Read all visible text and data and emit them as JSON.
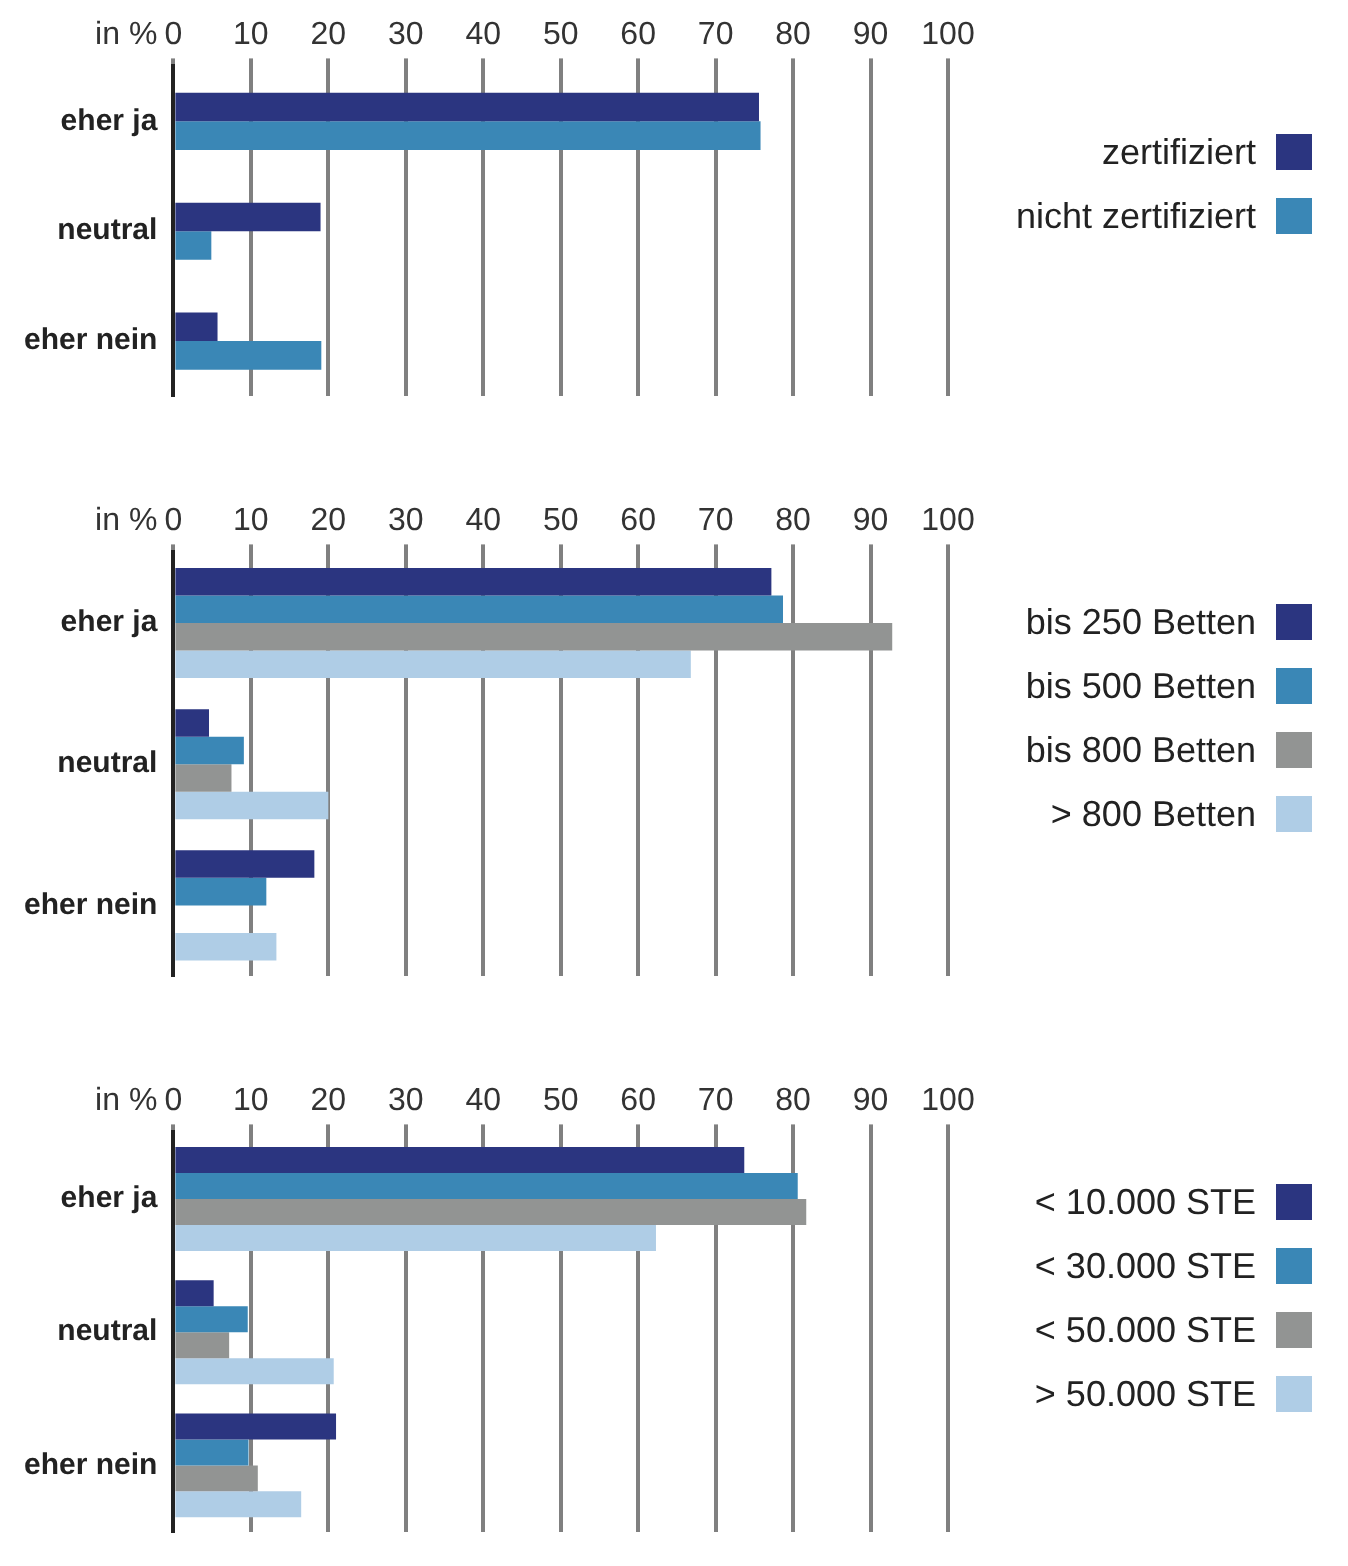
{
  "chart_data": [
    {
      "type": "bar",
      "orientation": "horizontal",
      "xlabel": "in %",
      "categories": [
        "eher ja",
        "neutral",
        "eher nein"
      ],
      "xlim": [
        0,
        100
      ],
      "xticks": [
        0,
        10,
        20,
        30,
        40,
        50,
        60,
        70,
        80,
        90,
        100
      ],
      "grid": "x",
      "legend": "right",
      "series": [
        {
          "name": "zertifiziert",
          "color": "#2b3580",
          "values": [
            75.6,
            19.0,
            5.7
          ]
        },
        {
          "name": "nicht zertifiziert",
          "color": "#3a87b6",
          "values": [
            75.8,
            4.9,
            19.1
          ]
        }
      ]
    },
    {
      "type": "bar",
      "orientation": "horizontal",
      "xlabel": "in %",
      "categories": [
        "eher ja",
        "neutral",
        "eher nein"
      ],
      "xlim": [
        0,
        100
      ],
      "xticks": [
        0,
        10,
        20,
        30,
        40,
        50,
        60,
        70,
        80,
        90,
        100
      ],
      "grid": "x",
      "legend": "right",
      "series": [
        {
          "name": "bis 250 Betten",
          "color": "#2b3580",
          "values": [
            77.2,
            4.6,
            18.2
          ]
        },
        {
          "name": "bis 500 Betten",
          "color": "#3a87b6",
          "values": [
            78.7,
            9.1,
            12.0
          ]
        },
        {
          "name": "bis 800 Betten",
          "color": "#929493",
          "values": [
            92.8,
            7.5,
            0
          ]
        },
        {
          "name": "> 800 Betten",
          "color": "#afcde6",
          "values": [
            66.8,
            20.0,
            13.3
          ]
        }
      ]
    },
    {
      "type": "bar",
      "orientation": "horizontal",
      "xlabel": "in %",
      "categories": [
        "eher ja",
        "neutral",
        "eher nein"
      ],
      "xlim": [
        0,
        100
      ],
      "xticks": [
        0,
        10,
        20,
        30,
        40,
        50,
        60,
        70,
        80,
        90,
        100
      ],
      "grid": "x",
      "legend": "right",
      "series": [
        {
          "name": "< 10.000 STE",
          "color": "#2b3580",
          "values": [
            73.7,
            5.2,
            21.0
          ]
        },
        {
          "name": "< 30.000 STE",
          "color": "#3a87b6",
          "values": [
            80.6,
            9.6,
            9.7
          ]
        },
        {
          "name": "< 50.000 STE",
          "color": "#929493",
          "values": [
            81.7,
            7.2,
            10.9
          ]
        },
        {
          "name": "> 50.000 STE",
          "color": "#afcde6",
          "values": [
            62.3,
            20.7,
            16.5
          ]
        }
      ]
    }
  ]
}
